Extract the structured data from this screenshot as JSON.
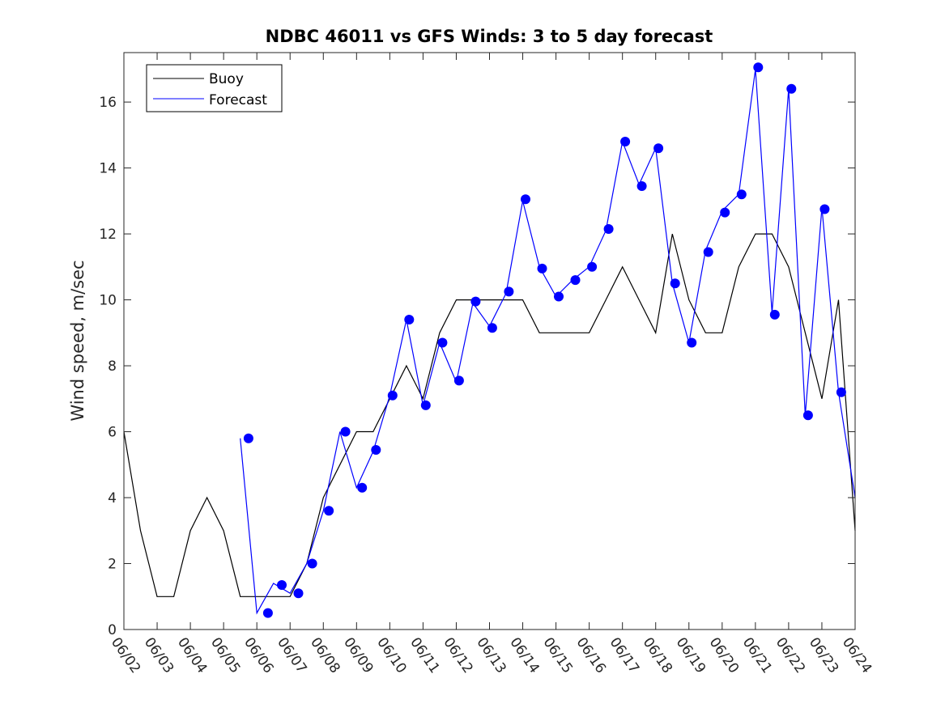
{
  "chart_data": {
    "type": "line",
    "title": "NDBC 46011 vs GFS Winds: 3 to 5 day forecast",
    "xlabel": "",
    "ylabel": "Wind speed, m/sec",
    "x_tick_labels": [
      "06/02",
      "06/03",
      "06/04",
      "06/05",
      "06/06",
      "06/07",
      "06/08",
      "06/09",
      "06/10",
      "06/11",
      "06/12",
      "06/13",
      "06/14",
      "06/15",
      "06/16",
      "06/17",
      "06/18",
      "06/19",
      "06/20",
      "06/21",
      "06/22",
      "06/23",
      "06/24"
    ],
    "xlim": [
      "06/02",
      "06/24"
    ],
    "ylim": [
      0,
      17.5
    ],
    "y_ticks": [
      0,
      2,
      4,
      6,
      8,
      10,
      12,
      14,
      16
    ],
    "grid": false,
    "legend": {
      "position": "top-left",
      "entries": [
        "Buoy",
        "Forecast"
      ]
    },
    "colors": {
      "buoy": "#000000",
      "forecast": "#0000ff",
      "markers": "#0000ff"
    },
    "series": [
      {
        "name": "Buoy",
        "x": [
          "06/02 00:00",
          "06/02 12:00",
          "06/03 00:00",
          "06/03 12:00",
          "06/04 00:00",
          "06/04 12:00",
          "06/05 00:00",
          "06/05 12:00",
          "06/06 00:00",
          "06/06 12:00",
          "06/07 00:00",
          "06/07 12:00",
          "06/08 00:00",
          "06/08 12:00",
          "06/09 00:00",
          "06/09 12:00",
          "06/10 00:00",
          "06/10 12:00",
          "06/11 00:00",
          "06/11 12:00",
          "06/12 00:00",
          "06/12 12:00",
          "06/13 00:00",
          "06/13 12:00",
          "06/14 00:00",
          "06/14 12:00",
          "06/15 00:00",
          "06/15 12:00",
          "06/16 00:00",
          "06/16 12:00",
          "06/17 00:00",
          "06/17 12:00",
          "06/18 00:00",
          "06/18 12:00",
          "06/19 00:00",
          "06/19 12:00",
          "06/20 00:00",
          "06/20 12:00",
          "06/21 00:00",
          "06/21 12:00",
          "06/22 00:00",
          "06/22 12:00",
          "06/23 00:00",
          "06/23 12:00",
          "06/24 00:00"
        ],
        "y": [
          6,
          3,
          1,
          1,
          3,
          4,
          3,
          1,
          1,
          1,
          1,
          2,
          4,
          5,
          6,
          6,
          7,
          8,
          7,
          9,
          10,
          10,
          10,
          10,
          10,
          9,
          9,
          9,
          9,
          10,
          11,
          10,
          9,
          12,
          10,
          9,
          9,
          11,
          12,
          12,
          11,
          9,
          7,
          10,
          3
        ]
      },
      {
        "name": "Forecast",
        "x": [
          "06/05 12:00",
          "06/06 00:00",
          "06/06 12:00",
          "06/07 00:00",
          "06/07 12:00",
          "06/08 00:00",
          "06/08 12:00",
          "06/09 00:00",
          "06/09 12:00",
          "06/10 00:00",
          "06/10 12:00",
          "06/11 00:00",
          "06/11 12:00",
          "06/12 00:00",
          "06/12 12:00",
          "06/13 00:00",
          "06/13 12:00",
          "06/14 00:00",
          "06/14 12:00",
          "06/15 00:00",
          "06/15 12:00",
          "06/16 00:00",
          "06/16 12:00",
          "06/17 00:00",
          "06/17 12:00",
          "06/18 00:00",
          "06/18 12:00",
          "06/19 00:00",
          "06/19 12:00",
          "06/20 00:00",
          "06/20 12:00",
          "06/21 00:00",
          "06/21 12:00",
          "06/22 00:00",
          "06/22 12:00",
          "06/23 00:00",
          "06/23 12:00",
          "06/24 00:00"
        ],
        "y": [
          5.8,
          0.5,
          1.4,
          1.1,
          2.0,
          3.6,
          6.0,
          4.3,
          5.4,
          7.1,
          9.4,
          6.8,
          8.7,
          7.5,
          9.9,
          9.2,
          10.2,
          13.0,
          11.0,
          10.1,
          10.6,
          11.0,
          12.1,
          14.8,
          13.5,
          14.6,
          10.5,
          8.7,
          11.5,
          12.7,
          13.2,
          17.0,
          9.6,
          16.4,
          6.5,
          12.8,
          7.2,
          4.0
        ]
      }
    ],
    "markers": {
      "x": [
        "06/05 18:00",
        "06/06 08:00",
        "06/06 18:00",
        "06/07 06:00",
        "06/07 16:00",
        "06/08 04:00",
        "06/08 16:00",
        "06/09 04:00",
        "06/09 14:00",
        "06/10 02:00",
        "06/10 14:00",
        "06/11 02:00",
        "06/11 14:00",
        "06/12 02:00",
        "06/12 14:00",
        "06/13 02:00",
        "06/13 14:00",
        "06/14 02:00",
        "06/14 14:00",
        "06/15 02:00",
        "06/15 14:00",
        "06/16 02:00",
        "06/16 14:00",
        "06/17 02:00",
        "06/17 14:00",
        "06/18 02:00",
        "06/18 14:00",
        "06/19 02:00",
        "06/19 14:00",
        "06/20 02:00",
        "06/20 14:00",
        "06/21 02:00",
        "06/21 14:00",
        "06/22 02:00",
        "06/22 14:00",
        "06/23 02:00",
        "06/23 14:00"
      ],
      "y": [
        5.8,
        0.5,
        1.35,
        1.1,
        2.0,
        3.6,
        6.0,
        4.3,
        5.45,
        7.1,
        9.4,
        6.8,
        8.7,
        7.55,
        9.95,
        9.15,
        10.25,
        13.05,
        10.95,
        10.1,
        10.6,
        11.0,
        12.15,
        14.8,
        13.45,
        14.6,
        10.5,
        8.7,
        11.45,
        12.65,
        13.2,
        17.05,
        9.55,
        16.4,
        6.5,
        12.75,
        7.2
      ]
    }
  }
}
